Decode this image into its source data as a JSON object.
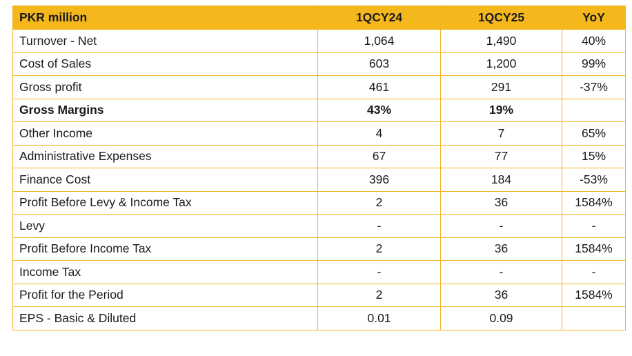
{
  "table": {
    "headers": {
      "label": "PKR million",
      "q24": "1QCY24",
      "q25": "1QCY25",
      "yoy": "YoY"
    },
    "rows": [
      {
        "label": "Turnover - Net",
        "q24": "1,064",
        "q25": "1,490",
        "yoy": "40%"
      },
      {
        "label": "Cost of Sales",
        "q24": "603",
        "q25": "1,200",
        "yoy": "99%"
      },
      {
        "label": "Gross profit",
        "q24": "461",
        "q25": "291",
        "yoy": "-37%"
      },
      {
        "label": "Gross Margins",
        "q24": "43%",
        "q25": "19%",
        "yoy": ""
      },
      {
        "label": "Other Income",
        "q24": "4",
        "q25": "7",
        "yoy": "65%"
      },
      {
        "label": "Administrative Expenses",
        "q24": "67",
        "q25": "77",
        "yoy": "15%"
      },
      {
        "label": "Finance Cost",
        "q24": "396",
        "q25": "184",
        "yoy": "-53%"
      },
      {
        "label": "Profit Before Levy & Income Tax",
        "q24": "2",
        "q25": "36",
        "yoy": "1584%"
      },
      {
        "label": "Levy",
        "q24": "-",
        "q25": "-",
        "yoy": "-"
      },
      {
        "label": "Profit Before Income Tax",
        "q24": "2",
        "q25": "36",
        "yoy": "1584%"
      },
      {
        "label": "Income Tax",
        "q24": "-",
        "q25": "-",
        "yoy": "-"
      },
      {
        "label": "Profit for the Period",
        "q24": "2",
        "q25": "36",
        "yoy": "1584%"
      },
      {
        "label": "EPS - Basic & Diluted",
        "q24": "0.01",
        "q25": "0.09",
        "yoy": ""
      }
    ]
  },
  "colors": {
    "header_bg": "#f4b81c",
    "border": "#f2b321"
  }
}
